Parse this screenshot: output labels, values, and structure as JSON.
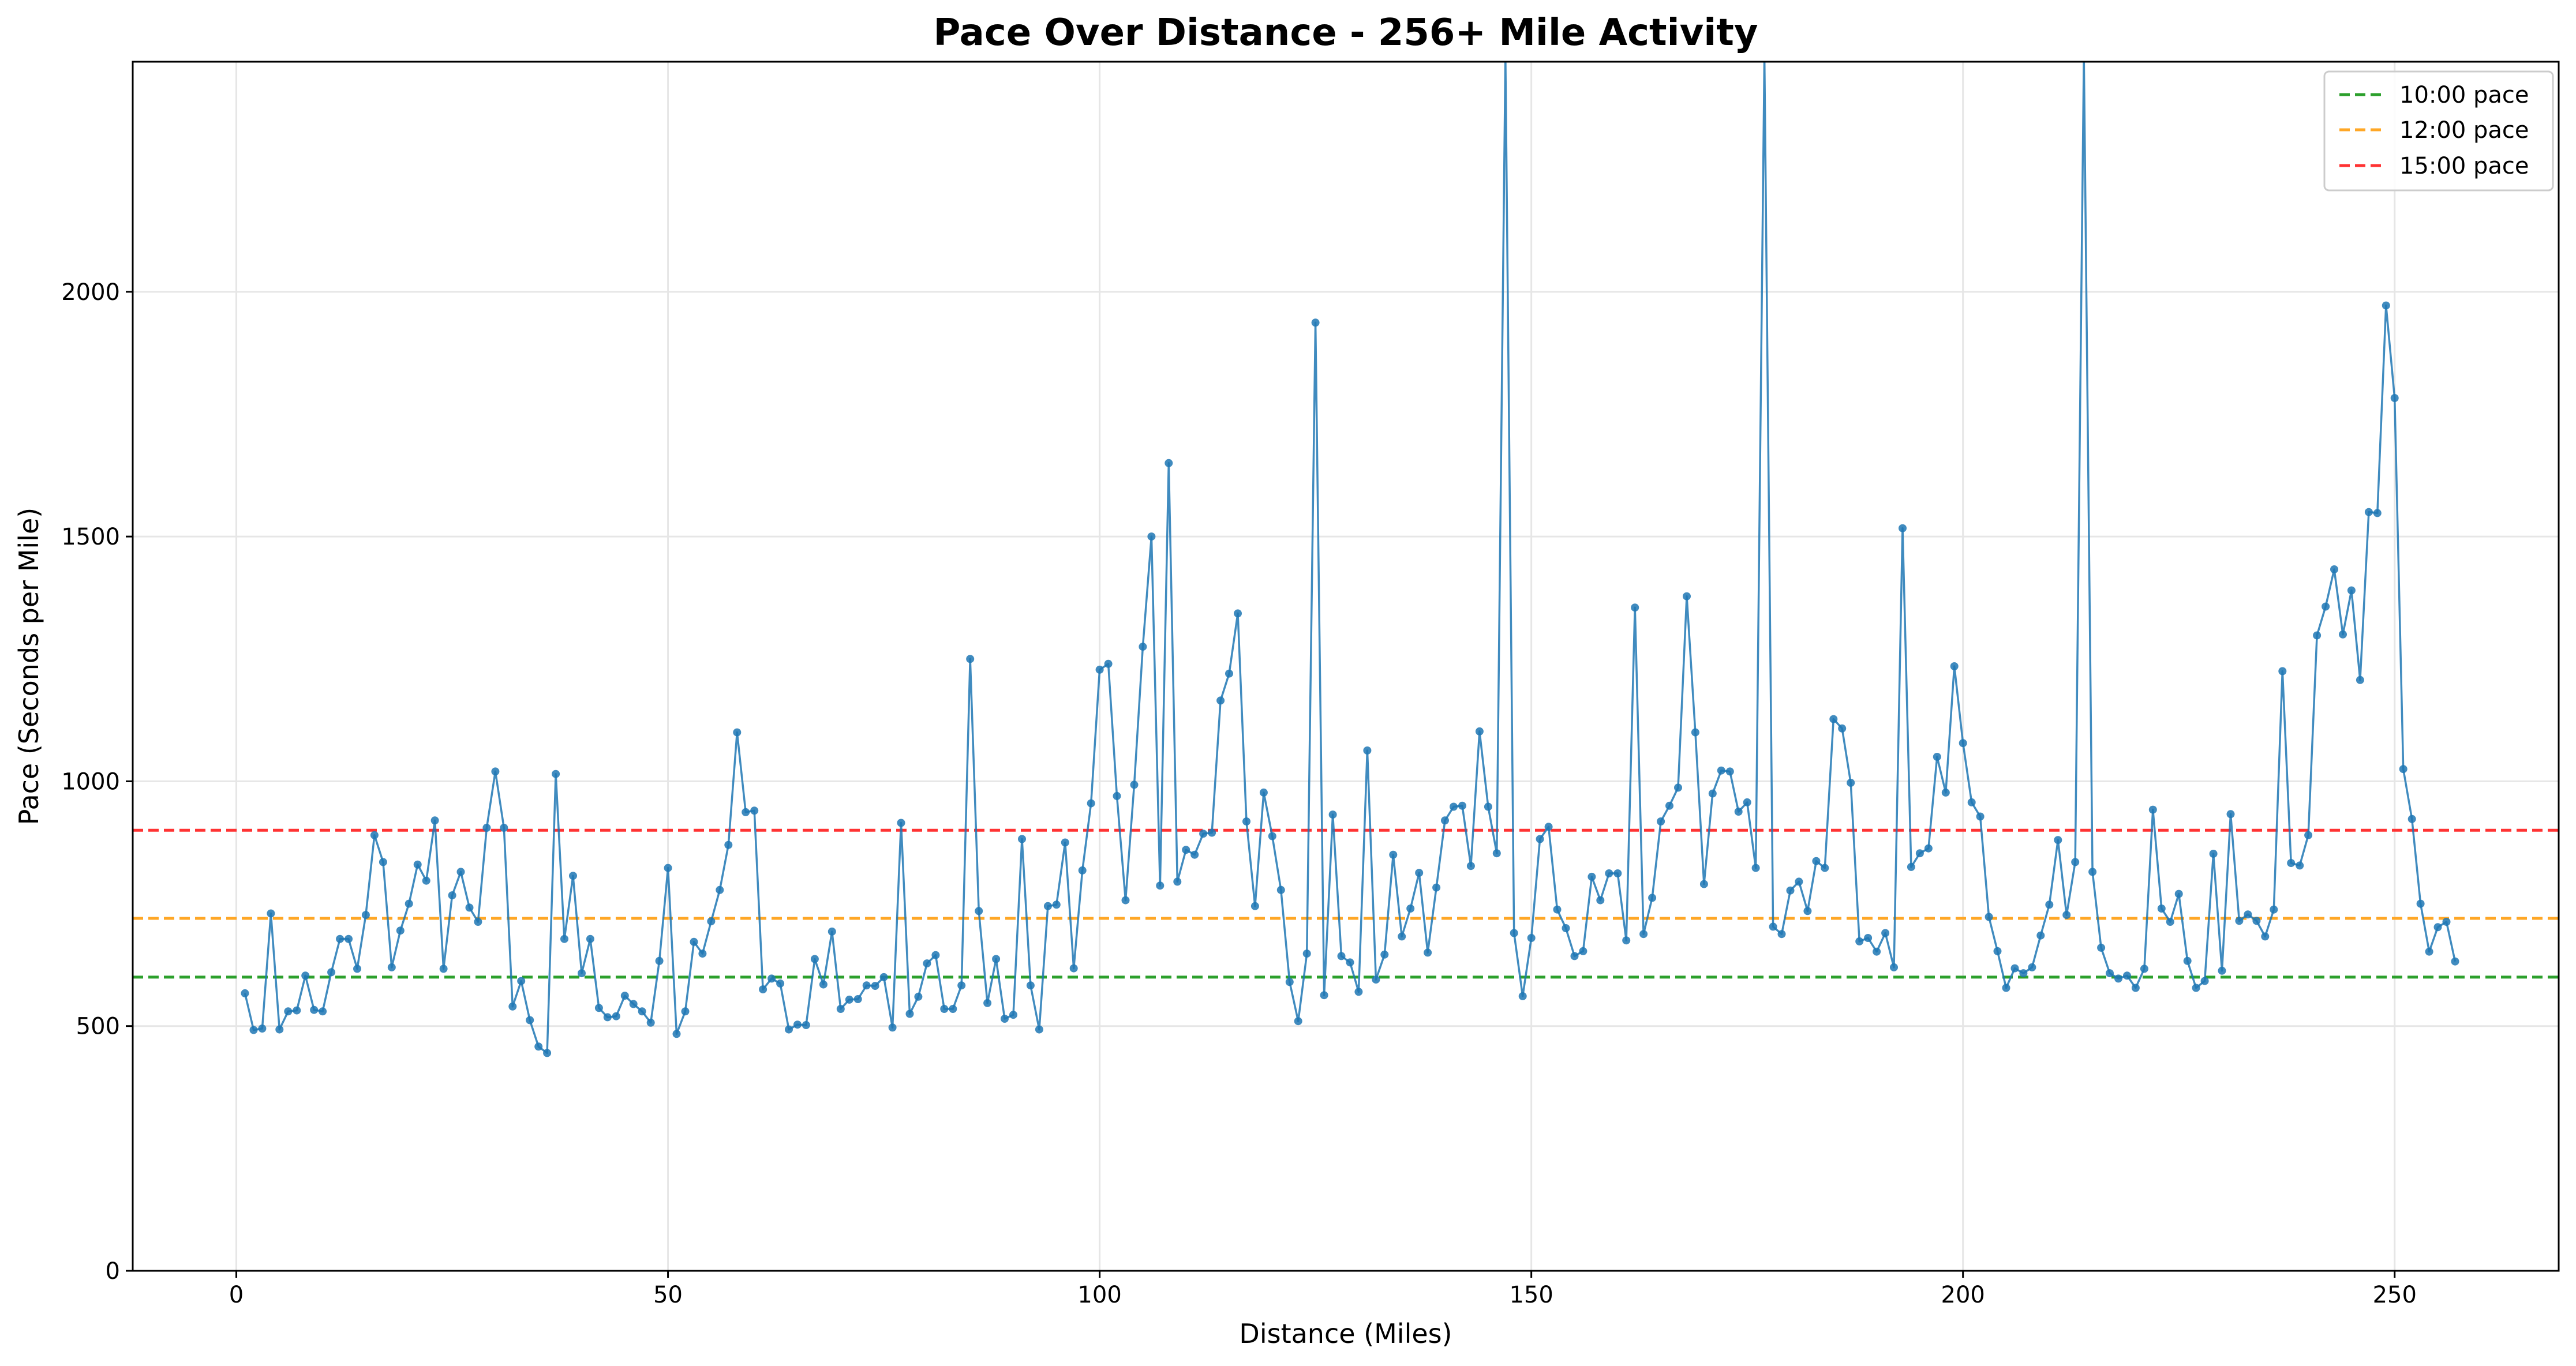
{
  "chart_data": {
    "type": "line",
    "title": "Pace Over Distance - 256+ Mile Activity",
    "xlabel": "Distance (Miles)",
    "ylabel": "Pace (Seconds per Mile)",
    "xlim": [
      -12,
      269
    ],
    "ylim": [
      0,
      2470
    ],
    "x_ticks": [
      0,
      50,
      100,
      150,
      200,
      250
    ],
    "y_ticks": [
      0,
      500,
      1000,
      1500,
      2000
    ],
    "grid": true,
    "legend_position": "top-right",
    "reference_lines": [
      {
        "name": "10:00 pace",
        "value": 600,
        "color": "#2ca02c"
      },
      {
        "name": "12:00 pace",
        "value": 720,
        "color": "#ffa726"
      },
      {
        "name": "15:00 pace",
        "value": 900,
        "color": "#ff3333"
      }
    ],
    "series": [
      {
        "color": "#1f77b4",
        "x": [
          1,
          2,
          3,
          4,
          5,
          6,
          7,
          8,
          9,
          10,
          11,
          12,
          13,
          14,
          15,
          16,
          17,
          18,
          19,
          20,
          21,
          22,
          23,
          24,
          25,
          26,
          27,
          28,
          29,
          30,
          31,
          32,
          33,
          34,
          35,
          36,
          37,
          38,
          39,
          40,
          41,
          42,
          43,
          44,
          45,
          46,
          47,
          48,
          49,
          50,
          51,
          52,
          53,
          54,
          55,
          56,
          57,
          58,
          59,
          60,
          61,
          62,
          63,
          64,
          65,
          66,
          67,
          68,
          69,
          70,
          71,
          72,
          73,
          74,
          75,
          76,
          77,
          78,
          79,
          80,
          81,
          82,
          83,
          84,
          85,
          86,
          87,
          88,
          89,
          90,
          91,
          92,
          93,
          94,
          95,
          96,
          97,
          98,
          99,
          100,
          101,
          102,
          103,
          104,
          105,
          106,
          107,
          108,
          109,
          110,
          111,
          112,
          113,
          114,
          115,
          116,
          117,
          118,
          119,
          120,
          121,
          122,
          123,
          124,
          125,
          126,
          127,
          128,
          129,
          130,
          131,
          132,
          133,
          134,
          135,
          136,
          137,
          138,
          139,
          140,
          141,
          142,
          143,
          144,
          145,
          146,
          147,
          148,
          149,
          150,
          151,
          152,
          153,
          154,
          155,
          156,
          157,
          158,
          159,
          160,
          161,
          162,
          163,
          164,
          165,
          166,
          167,
          168,
          169,
          170,
          171,
          172,
          173,
          174,
          175,
          176,
          177,
          178,
          179,
          180,
          181,
          182,
          183,
          184,
          185,
          186,
          187,
          188,
          189,
          190,
          191,
          192,
          193,
          194,
          195,
          196,
          197,
          198,
          199,
          200,
          201,
          202,
          203,
          204,
          205,
          206,
          207,
          208,
          209,
          210,
          211,
          212,
          213,
          214,
          215,
          216,
          217,
          218,
          219,
          220,
          221,
          222,
          223,
          224,
          225,
          226,
          227,
          228,
          229,
          230,
          231,
          232,
          233,
          234,
          235,
          236,
          237,
          238,
          239,
          240,
          241,
          242,
          243,
          244,
          245,
          246,
          247,
          248,
          249,
          250,
          251,
          252,
          253,
          254,
          255,
          256,
          257
        ],
        "y": [
          567,
          492,
          495,
          730,
          493,
          530,
          532,
          603,
          533,
          530,
          610,
          678,
          678,
          617,
          727,
          890,
          835,
          620,
          695,
          750,
          830,
          797,
          920,
          617,
          767,
          815,
          742,
          713,
          905,
          1020,
          905,
          540,
          592,
          512,
          458,
          445,
          1015,
          678,
          807,
          608,
          678,
          537,
          518,
          520,
          562,
          545,
          530,
          507,
          633,
          823,
          484,
          530,
          672,
          648,
          714,
          778,
          870,
          1100,
          937,
          940,
          575,
          597,
          587,
          493,
          503,
          502,
          637,
          585,
          693,
          535,
          554,
          555,
          583,
          582,
          600,
          497,
          915,
          525,
          560,
          628,
          645,
          535,
          535,
          583,
          1250,
          735,
          547,
          637,
          515,
          523,
          882,
          583,
          493,
          745,
          748,
          875,
          618,
          818,
          955,
          1228,
          1240,
          970,
          757,
          993,
          1275,
          1500,
          787,
          1650,
          795,
          860,
          850,
          893,
          895,
          1165,
          1220,
          1343,
          918,
          745,
          977,
          888,
          778,
          590,
          510,
          648,
          1937,
          563,
          932,
          643,
          630,
          570,
          1063,
          595,
          646,
          850,
          683,
          740,
          813,
          650,
          783,
          920,
          948,
          950,
          827,
          1102,
          948,
          853,
          2480,
          690,
          561,
          680,
          882,
          907,
          738,
          700,
          643,
          653,
          805,
          757,
          812,
          812,
          675,
          1355,
          688,
          762,
          918,
          950,
          987,
          1378,
          1100,
          790,
          975,
          1022,
          1020,
          938,
          957,
          823,
          2480,
          703,
          688,
          777,
          795,
          735,
          837,
          823,
          1127,
          1108,
          997,
          673,
          680,
          652,
          690,
          620,
          1517,
          825,
          853,
          863,
          1050,
          977,
          1235,
          1078,
          957,
          928,
          723,
          653,
          578,
          618,
          608,
          620,
          685,
          748,
          880,
          727,
          835,
          2480,
          815,
          660,
          608,
          597,
          603,
          578,
          617,
          942,
          740,
          713,
          770,
          633,
          578,
          592,
          852,
          613,
          933,
          715,
          728,
          715,
          683,
          738,
          1225,
          833,
          828,
          890,
          1298,
          1357,
          1433,
          1300,
          1390,
          1207,
          1550,
          1548,
          1972,
          1783,
          1025,
          923,
          750,
          652,
          702,
          713,
          632
        ]
      }
    ]
  }
}
